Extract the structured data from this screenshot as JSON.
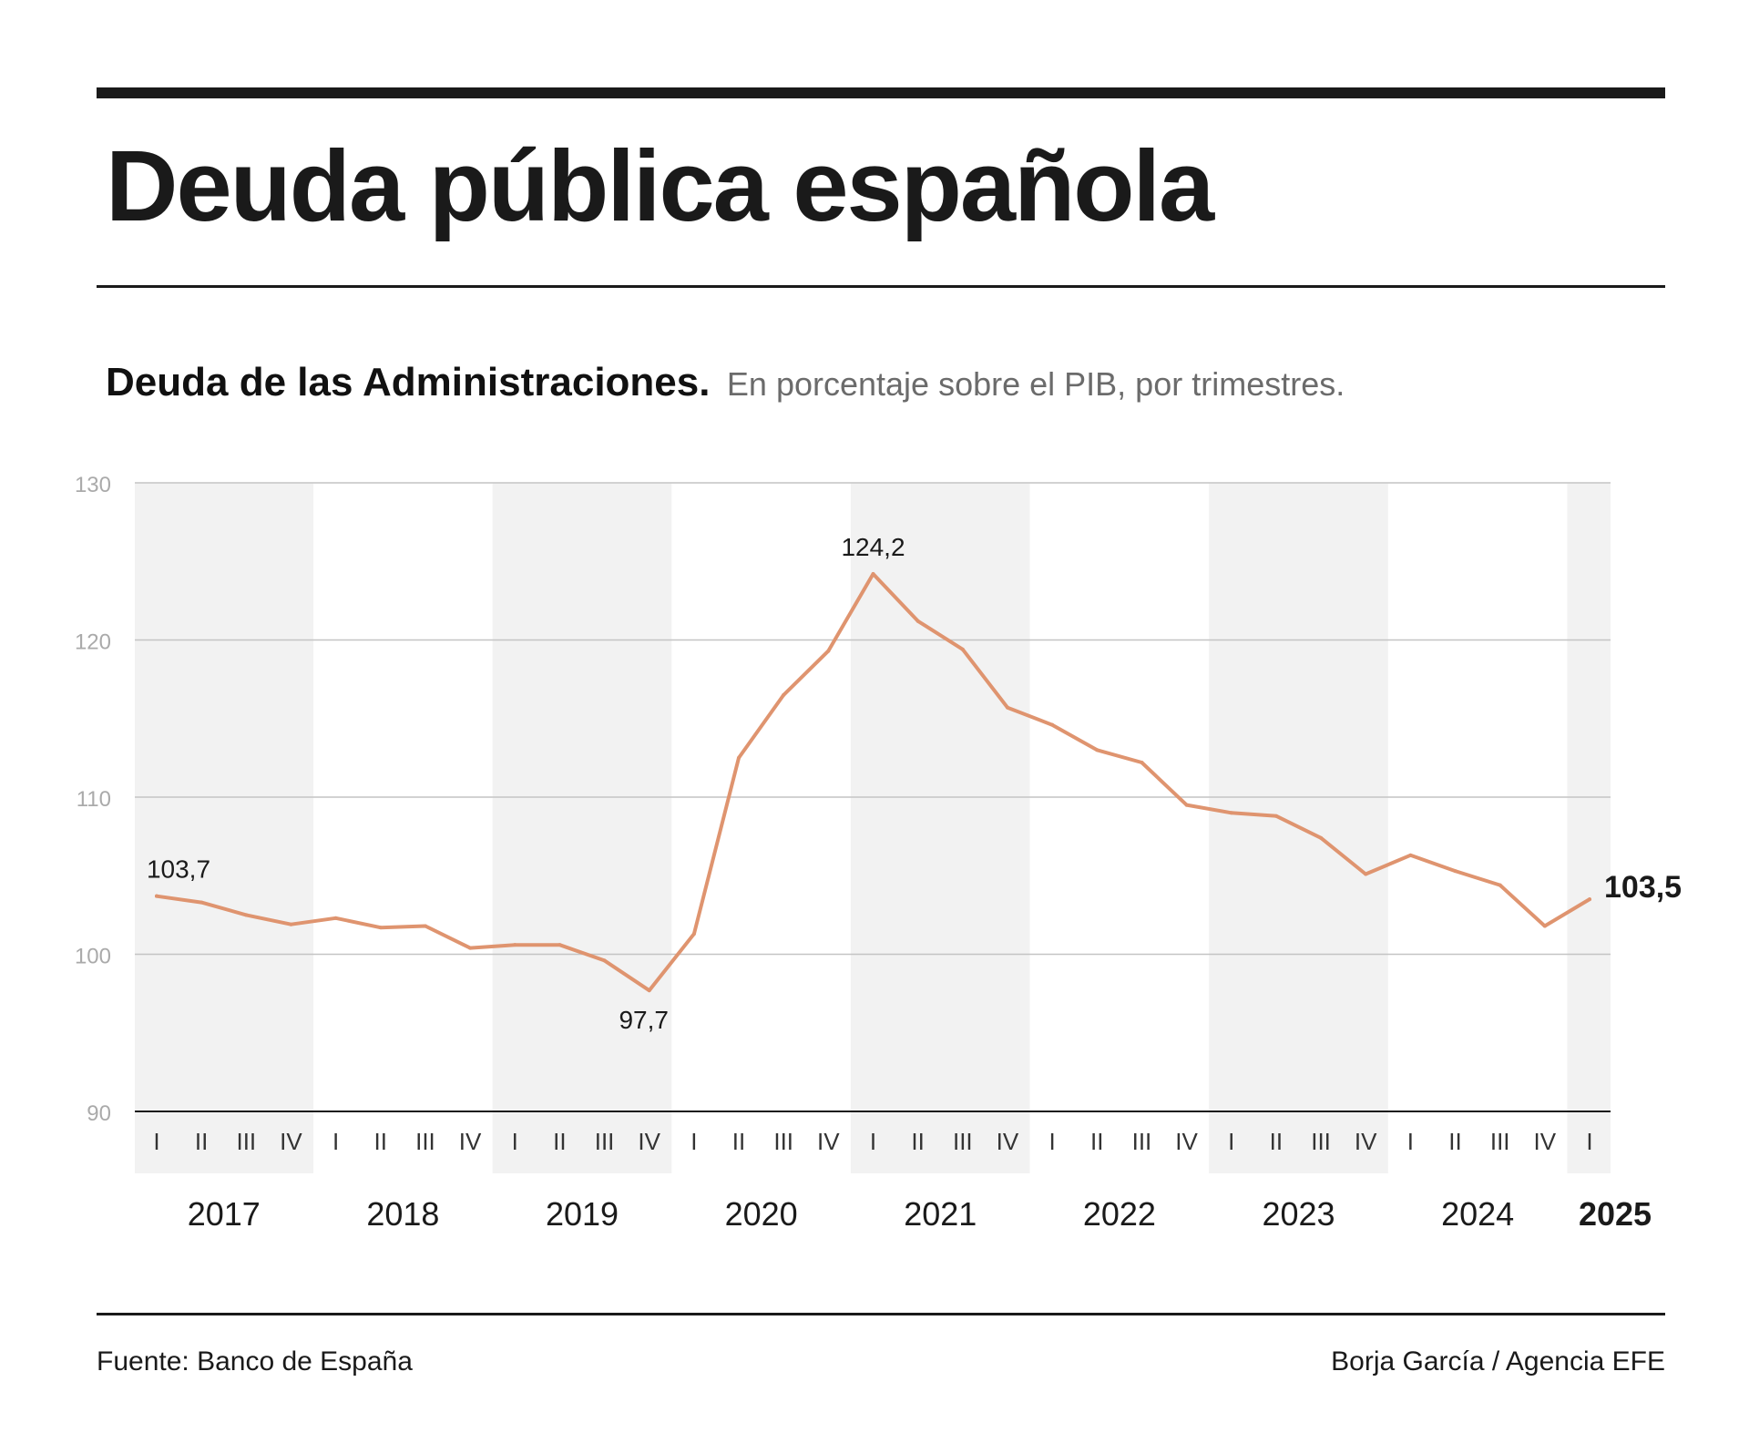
{
  "title": "Deuda pública española",
  "subtitle_bold": "Deuda de las Administraciones.",
  "subtitle_light": "En porcentaje sobre el PIB, por trimestres.",
  "source": "Fuente: Banco de España",
  "credit": "Borja García / Agencia EFE",
  "colors": {
    "line": "#df946f",
    "band": "#f2f2f2",
    "grid": "#c4c4c4",
    "axis": "#1a1a1a",
    "tick_label": "#aaaaaa"
  },
  "chart_data": {
    "type": "line",
    "title": "Deuda de las Administraciones",
    "ylabel": "En porcentaje sobre el PIB",
    "ylim": [
      90,
      130
    ],
    "yticks": [
      90,
      100,
      110,
      120,
      130
    ],
    "grid": true,
    "years": [
      {
        "label": "2017",
        "quarters": [
          "I",
          "II",
          "III",
          "IV"
        ]
      },
      {
        "label": "2018",
        "quarters": [
          "I",
          "II",
          "III",
          "IV"
        ]
      },
      {
        "label": "2019",
        "quarters": [
          "I",
          "II",
          "III",
          "IV"
        ]
      },
      {
        "label": "2020",
        "quarters": [
          "I",
          "II",
          "III",
          "IV"
        ]
      },
      {
        "label": "2021",
        "quarters": [
          "I",
          "II",
          "III",
          "IV"
        ]
      },
      {
        "label": "2022",
        "quarters": [
          "I",
          "II",
          "III",
          "IV"
        ]
      },
      {
        "label": "2023",
        "quarters": [
          "I",
          "II",
          "III",
          "IV"
        ]
      },
      {
        "label": "2024",
        "quarters": [
          "I",
          "II",
          "III",
          "IV"
        ]
      },
      {
        "label": "2025",
        "quarters": [
          "I"
        ]
      }
    ],
    "series": [
      {
        "name": "Deuda pública (% PIB)",
        "values": [
          103.7,
          103.3,
          102.5,
          101.9,
          102.3,
          101.7,
          101.8,
          100.4,
          100.6,
          100.6,
          99.6,
          97.7,
          101.3,
          112.5,
          116.5,
          119.3,
          124.2,
          121.2,
          119.4,
          115.7,
          114.6,
          113.0,
          112.2,
          109.5,
          109.0,
          108.8,
          107.4,
          105.1,
          106.3,
          105.3,
          104.4,
          101.8,
          103.5
        ]
      }
    ],
    "annotations": [
      {
        "index": 0,
        "label": "103,7",
        "position": "above"
      },
      {
        "index": 11,
        "label": "97,7",
        "position": "below"
      },
      {
        "index": 16,
        "label": "124,2",
        "position": "above"
      },
      {
        "index": 32,
        "label": "103,5",
        "position": "right",
        "bold": true
      }
    ],
    "highlight_year": "2025"
  }
}
